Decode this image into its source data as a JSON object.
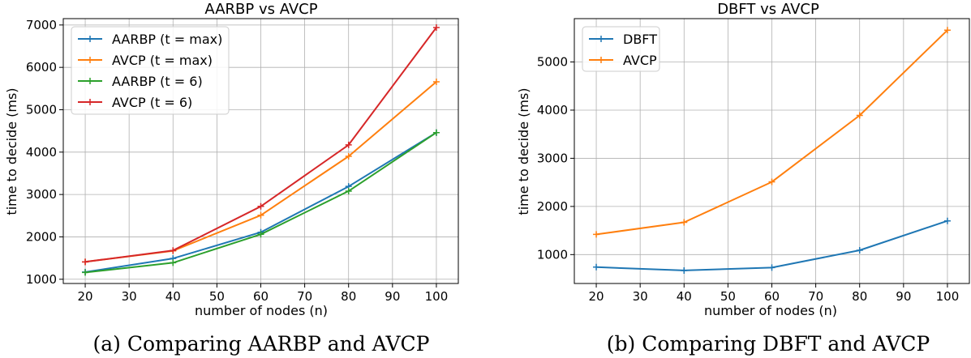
{
  "chart_data": [
    {
      "type": "line",
      "title": "AARBP vs AVCP",
      "xlabel": "number of nodes (n)",
      "ylabel": "time to decide (ms)",
      "x": [
        20,
        40,
        60,
        80,
        100
      ],
      "xlim": [
        15,
        105
      ],
      "ylim": [
        900,
        7150
      ],
      "xticks": [
        20,
        30,
        40,
        50,
        60,
        70,
        80,
        90,
        100
      ],
      "yticks": [
        1000,
        2000,
        3000,
        4000,
        5000,
        6000,
        7000
      ],
      "grid": true,
      "legend": "top-left",
      "series": [
        {
          "name": "AARBP (t = max)",
          "color": "#1f77b4",
          "values": [
            1170,
            1490,
            2110,
            3190,
            4460
          ]
        },
        {
          "name": "AVCP (t = max)",
          "color": "#ff7f0e",
          "values": [
            1410,
            1670,
            2510,
            3900,
            5660
          ]
        },
        {
          "name": "AARBP (t = 6)",
          "color": "#2ca02c",
          "values": [
            1160,
            1390,
            2060,
            3080,
            4460
          ]
        },
        {
          "name": "AVCP (t = 6)",
          "color": "#d62728",
          "values": [
            1410,
            1680,
            2720,
            4170,
            6940
          ]
        }
      ],
      "caption": "(a) Comparing AARBP and AVCP"
    },
    {
      "type": "line",
      "title": "DBFT vs AVCP",
      "xlabel": "number of nodes (n)",
      "ylabel": "time to decide (ms)",
      "x": [
        20,
        40,
        60,
        80,
        100
      ],
      "xlim": [
        15,
        105
      ],
      "ylim": [
        400,
        5900
      ],
      "xticks": [
        20,
        30,
        40,
        50,
        60,
        70,
        80,
        90,
        100
      ],
      "yticks": [
        1000,
        2000,
        3000,
        4000,
        5000
      ],
      "grid": true,
      "legend": "top-left",
      "series": [
        {
          "name": "DBFT",
          "color": "#1f77b4",
          "values": [
            740,
            670,
            730,
            1090,
            1700
          ]
        },
        {
          "name": "AVCP",
          "color": "#ff7f0e",
          "values": [
            1420,
            1670,
            2510,
            3890,
            5660
          ]
        }
      ],
      "caption": "(b) Comparing DBFT and AVCP"
    }
  ]
}
